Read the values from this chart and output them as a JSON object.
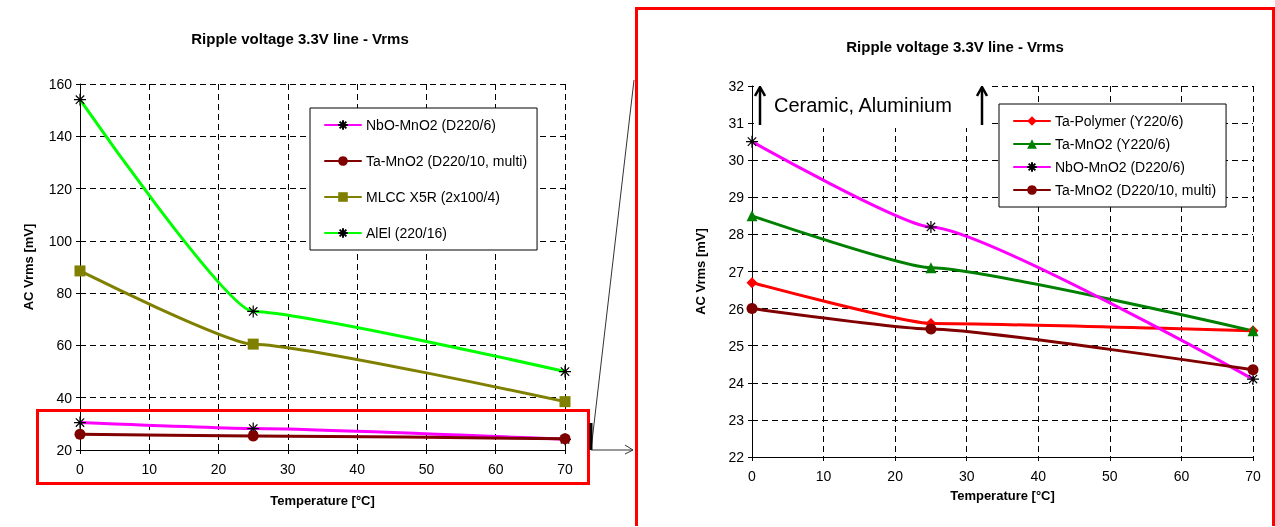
{
  "chart_data": [
    {
      "type": "line",
      "title": "Ripple voltage 3.3V line - Vrms",
      "xlabel": "Temperature [°C]",
      "ylabel": "AC Vrms [mV]",
      "x": [
        0,
        25,
        70
      ],
      "xlim": [
        0,
        70
      ],
      "xticks": [
        0,
        10,
        20,
        30,
        40,
        50,
        60,
        70
      ],
      "ylim": [
        20,
        160
      ],
      "yticks": [
        20,
        40,
        60,
        80,
        100,
        120,
        140,
        160
      ],
      "grid": true,
      "legend": "top right",
      "series": [
        {
          "name": "NbO-MnO2 (D220/6)",
          "color": "#ff00ff",
          "marker": "cross",
          "values": [
            30.5,
            28.2,
            24.1
          ]
        },
        {
          "name": "Ta-MnO2 (D220/10, multi)",
          "color": "#800000",
          "marker": "circle",
          "values": [
            26,
            25.4,
            24.3
          ]
        },
        {
          "name": "MLCC X5R (2x100/4)",
          "color": "#808000",
          "marker": "square",
          "values": [
            88.5,
            60.5,
            38.5
          ]
        },
        {
          "name": "AlEl (220/16)",
          "color": "#00ff00",
          "marker": "cross",
          "values": [
            154,
            73,
            50
          ]
        }
      ]
    },
    {
      "type": "line",
      "title": "Ripple voltage 3.3V line - Vrms",
      "xlabel": "Temperature [°C]",
      "ylabel": "AC Vrms [mV]",
      "x": [
        0,
        25,
        70
      ],
      "xlim": [
        0,
        70
      ],
      "xticks": [
        0,
        10,
        20,
        30,
        40,
        50,
        60,
        70
      ],
      "ylim": [
        22,
        32
      ],
      "yticks": [
        22,
        23,
        24,
        25,
        26,
        27,
        28,
        29,
        30,
        31,
        32
      ],
      "grid": true,
      "legend": "top right",
      "annotations": [
        "Ceramic, Aluminium"
      ],
      "series": [
        {
          "name": "Ta-Polymer (Y220/6)",
          "color": "#ff0000",
          "marker": "diamond",
          "values": [
            26.7,
            25.6,
            25.4
          ]
        },
        {
          "name": "Ta-MnO2 (Y220/6)",
          "color": "#008000",
          "marker": "triangle",
          "values": [
            28.5,
            27.1,
            25.4
          ]
        },
        {
          "name": "NbO-MnO2 (D220/6)",
          "color": "#ff00ff",
          "marker": "cross",
          "values": [
            30.5,
            28.2,
            24.1
          ]
        },
        {
          "name": "Ta-MnO2 (D220/10, multi)",
          "color": "#800000",
          "marker": "circle",
          "values": [
            26,
            25.45,
            24.35
          ]
        }
      ]
    }
  ]
}
